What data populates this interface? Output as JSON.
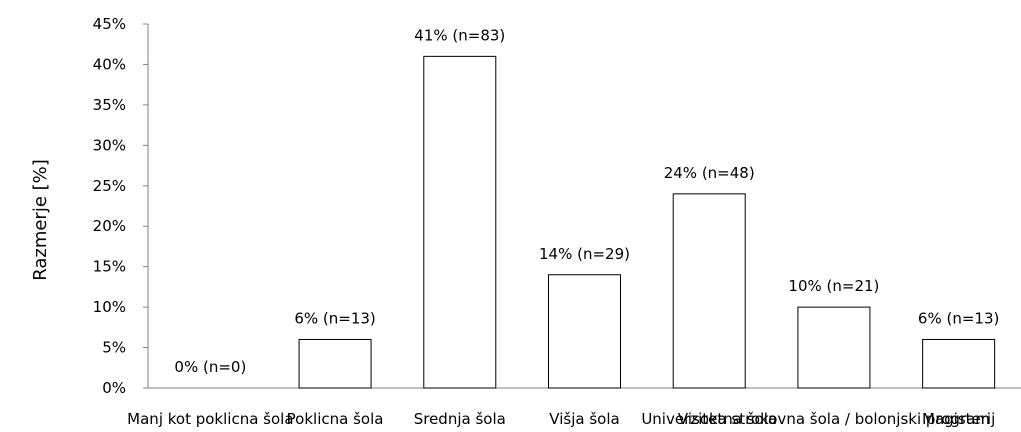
{
  "chart_data": {
    "type": "bar",
    "title": "",
    "xlabel": "",
    "ylabel": "Razmerje [%]",
    "ylim": [
      0,
      45
    ],
    "yticks": [
      "0%",
      "5%",
      "10%",
      "15%",
      "20%",
      "25%",
      "30%",
      "35%",
      "40%",
      "45%"
    ],
    "categories": [
      "Manj kot poklicna šola",
      "Poklicna šola",
      "Srednja šola",
      "Višja šola",
      "Univerzitetna šola",
      "Visoka strokovna šola / bolonjski program",
      "Magisterij"
    ],
    "values": [
      0,
      6,
      41,
      14,
      24,
      10,
      6
    ],
    "data_labels": [
      "0% (n=0)",
      "6% (n=13)",
      "41% (n=83)",
      "14% (n=29)",
      "24% (n=48)",
      "10% (n=21)",
      "6% (n=13)"
    ],
    "grid": false,
    "legend": "none",
    "colors": {
      "bar_fill": "#ffffff",
      "bar_stroke": "#000000",
      "axis": "#808080"
    }
  }
}
